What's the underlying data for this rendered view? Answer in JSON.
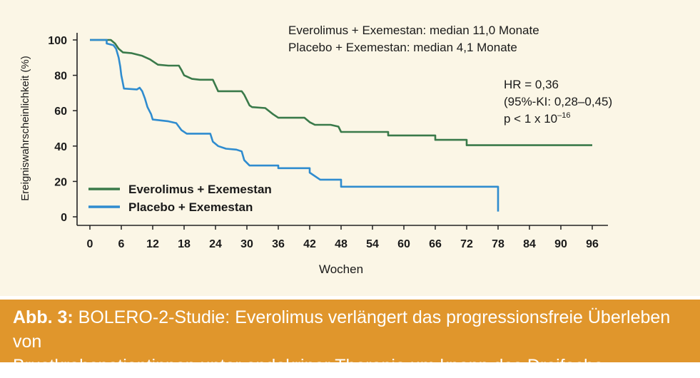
{
  "chart_data": {
    "type": "line",
    "xlabel": "Wochen",
    "ylabel": "Ereigniswahrscheinlichkeit (%)",
    "xticks": [
      "0",
      "6",
      "12",
      "18",
      "24",
      "30",
      "36",
      "42",
      "48",
      "54",
      "60",
      "66",
      "72",
      "78",
      "84",
      "90",
      "96"
    ],
    "yticks": [
      "0",
      "20",
      "40",
      "60",
      "80",
      "100"
    ],
    "xlim": [
      0,
      96
    ],
    "ylim": [
      0,
      100
    ],
    "grid": false,
    "legend_position": "bottom-left",
    "annotations": {
      "median_everolimus": "Everolimus + Exemestan: median  11,0 Monate",
      "median_placebo": "Placebo + Exemestan: median 4,1 Monate",
      "hr": "HR = 0,36",
      "ci": "(95%-KI: 0,28–0,45)",
      "p_base": "p < 1 x 10",
      "p_exp": "–16"
    },
    "series": [
      {
        "name": "Everolimus + Exemestan",
        "color": "#3a7a4a",
        "points": [
          [
            0,
            100
          ],
          [
            4,
            100
          ],
          [
            4.8,
            98
          ],
          [
            5.5,
            95
          ],
          [
            6.3,
            93
          ],
          [
            8,
            92.5
          ],
          [
            10,
            91
          ],
          [
            11.5,
            89
          ],
          [
            12,
            88
          ],
          [
            13,
            86
          ],
          [
            15,
            85.5
          ],
          [
            17,
            85.5
          ],
          [
            17.5,
            83
          ],
          [
            18,
            80
          ],
          [
            19.5,
            78
          ],
          [
            21,
            77.5
          ],
          [
            23.5,
            77.5
          ],
          [
            24.5,
            71
          ],
          [
            29,
            71
          ],
          [
            29.5,
            69
          ],
          [
            30,
            66
          ],
          [
            30.5,
            63
          ],
          [
            31,
            62
          ],
          [
            33.5,
            61.5
          ],
          [
            35,
            58
          ],
          [
            36,
            56
          ],
          [
            41,
            56
          ],
          [
            42,
            53.5
          ],
          [
            43,
            52
          ],
          [
            46,
            52
          ],
          [
            47.5,
            51
          ],
          [
            48,
            48
          ],
          [
            57,
            48
          ],
          [
            57,
            46
          ],
          [
            66,
            46
          ],
          [
            66,
            43.5
          ],
          [
            72,
            43.5
          ],
          [
            72,
            40.5
          ],
          [
            96,
            40.5
          ]
        ]
      },
      {
        "name": "Placebo + Exemestan",
        "color": "#2f8ccf",
        "points": [
          [
            0,
            100
          ],
          [
            3.2,
            100
          ],
          [
            3.2,
            98
          ],
          [
            4.5,
            97
          ],
          [
            5,
            95
          ],
          [
            5.5,
            90
          ],
          [
            5.8,
            85
          ],
          [
            6,
            80
          ],
          [
            6.2,
            77
          ],
          [
            6.5,
            72.5
          ],
          [
            9,
            72
          ],
          [
            9.5,
            73
          ],
          [
            10,
            71
          ],
          [
            10.5,
            67
          ],
          [
            11,
            62
          ],
          [
            11.7,
            58
          ],
          [
            12,
            55
          ],
          [
            15,
            54
          ],
          [
            16.5,
            53
          ],
          [
            17.5,
            49
          ],
          [
            18.5,
            47
          ],
          [
            23,
            47
          ],
          [
            23.5,
            42.5
          ],
          [
            24.5,
            40
          ],
          [
            26,
            38.5
          ],
          [
            28,
            38
          ],
          [
            29,
            37
          ],
          [
            29.5,
            32
          ],
          [
            30.5,
            29
          ],
          [
            36,
            29
          ],
          [
            36,
            27.5
          ],
          [
            42,
            27.5
          ],
          [
            42,
            25
          ],
          [
            44,
            21
          ],
          [
            48,
            21
          ],
          [
            48,
            17
          ],
          [
            78,
            17
          ],
          [
            78,
            3
          ]
        ]
      }
    ]
  },
  "caption": {
    "bold": "Abb. 3:",
    "line1": " BOLERO-2-Studie: Everolimus verlängert das progressionsfreie Überleben von",
    "line2": "Brustkrebspatientinnen unter endokriner Therapie um knapp das Dreifache."
  }
}
